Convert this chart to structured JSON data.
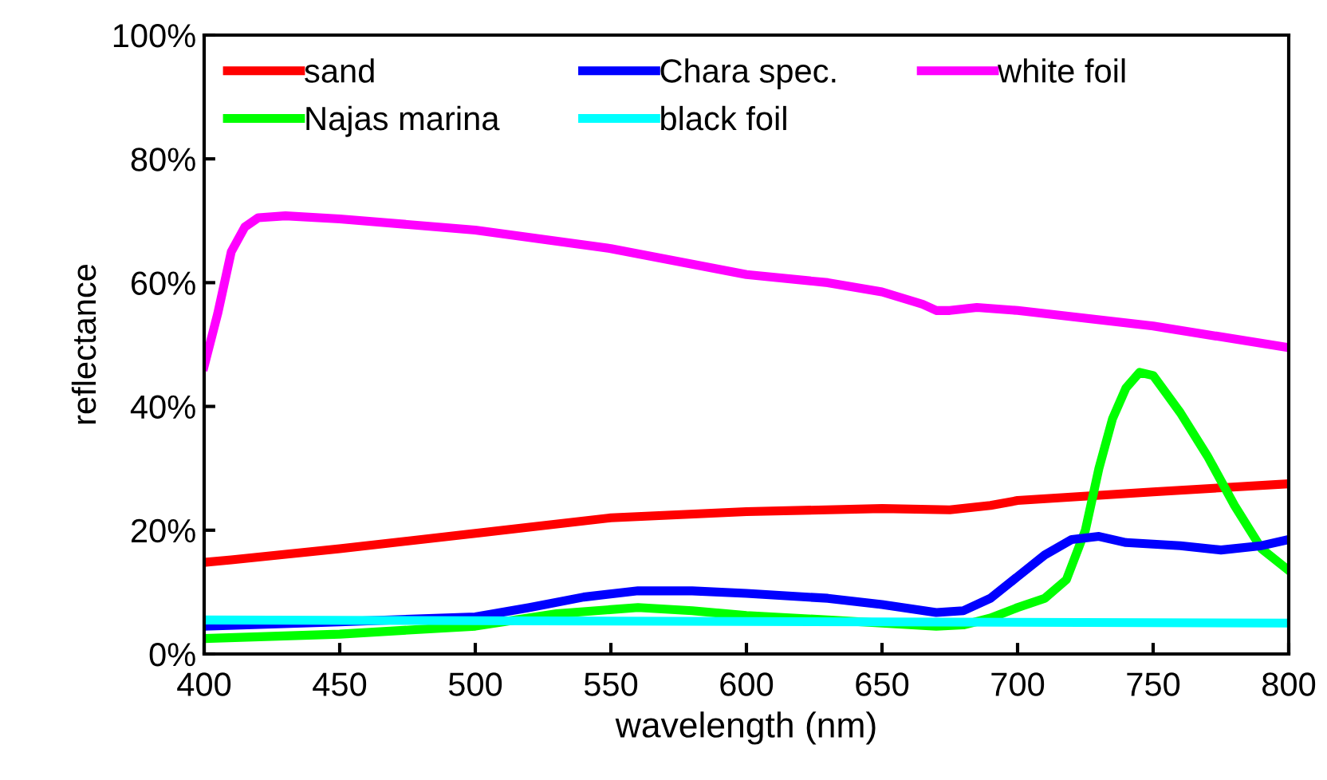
{
  "chart_data": {
    "type": "line",
    "xlabel": "wavelength (nm)",
    "ylabel": "reflectance",
    "xlim": [
      400,
      800
    ],
    "xticks": [
      400,
      450,
      500,
      550,
      600,
      650,
      700,
      750,
      800
    ],
    "ylim": [
      0,
      100
    ],
    "yticks": [
      {
        "value": 0,
        "label": "0%"
      },
      {
        "value": 20,
        "label": "20%"
      },
      {
        "value": 40,
        "label": "40%"
      },
      {
        "value": 60,
        "label": "60%"
      },
      {
        "value": 80,
        "label": "80%"
      },
      {
        "value": 100,
        "label": "100%"
      }
    ],
    "grid": false,
    "legend": "top left",
    "marker": "none",
    "line_style": "solid",
    "series": [
      {
        "name": "sand",
        "color": "#ff0000",
        "x": [
          400,
          410,
          450,
          500,
          550,
          600,
          650,
          675,
          690,
          700,
          750,
          800
        ],
        "values": [
          14.8,
          15.2,
          17,
          19.5,
          22,
          23,
          23.5,
          23.3,
          24,
          24.8,
          26.2,
          27.5
        ]
      },
      {
        "name": "Najas marina",
        "color": "#00ff00",
        "x": [
          400,
          450,
          500,
          530,
          560,
          580,
          600,
          630,
          650,
          670,
          680,
          690,
          700,
          710,
          718,
          725,
          730,
          735,
          740,
          745,
          750,
          755,
          760,
          770,
          780,
          790,
          800
        ],
        "values": [
          2.5,
          3.2,
          4.5,
          6.5,
          7.5,
          7,
          6.2,
          5.5,
          5,
          4.5,
          4.7,
          5.8,
          7.5,
          9,
          12,
          20,
          30,
          38,
          43,
          45.5,
          45,
          42,
          39,
          32,
          24,
          17,
          13.5
        ]
      },
      {
        "name": "Chara spec.",
        "color": "#0000ff",
        "x": [
          400,
          450,
          500,
          520,
          540,
          560,
          580,
          600,
          630,
          650,
          670,
          680,
          690,
          700,
          710,
          720,
          730,
          740,
          760,
          775,
          790,
          800
        ],
        "values": [
          4.5,
          5.2,
          6,
          7.5,
          9.2,
          10.2,
          10.2,
          9.8,
          9,
          8,
          6.7,
          7,
          9,
          12.5,
          16,
          18.5,
          19,
          18,
          17.5,
          16.8,
          17.5,
          18.5
        ]
      },
      {
        "name": "black foil",
        "color": "#00ffff",
        "x": [
          400,
          800
        ],
        "values": [
          5.5,
          5
        ]
      },
      {
        "name": "white foil",
        "color": "#ff00ff",
        "x": [
          400,
          405,
          410,
          415,
          420,
          430,
          450,
          500,
          550,
          600,
          630,
          650,
          665,
          670,
          675,
          685,
          700,
          750,
          800
        ],
        "values": [
          46.5,
          55,
          65,
          69,
          70.5,
          70.8,
          70.3,
          68.5,
          65.5,
          61.3,
          60,
          58.5,
          56.5,
          55.5,
          55.5,
          56,
          55.5,
          53,
          49.5
        ]
      }
    ]
  }
}
